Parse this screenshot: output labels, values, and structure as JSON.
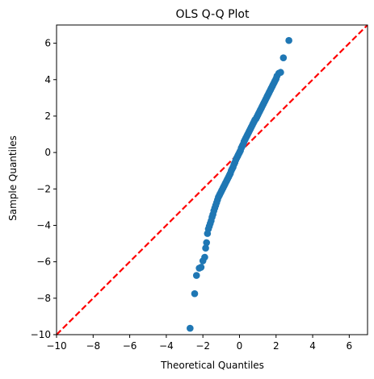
{
  "chart_data": {
    "type": "scatter",
    "title": "OLS Q-Q Plot",
    "xlabel": "Theoretical Quantiles",
    "ylabel": "Sample Quantiles",
    "xlim": [
      -10,
      7
    ],
    "ylim": [
      -10,
      7
    ],
    "xticks": [
      -10,
      -8,
      -6,
      -4,
      -2,
      0,
      2,
      4,
      6
    ],
    "yticks": [
      -10,
      -8,
      -6,
      -4,
      -2,
      0,
      2,
      4,
      6
    ],
    "grid": false,
    "colors": {
      "points": "#1f77b4",
      "reference_line": "#ff0000"
    },
    "reference_line": {
      "style": "dashed",
      "slope": 1,
      "intercept": 0
    },
    "series": [
      {
        "points": [
          [
            -2.7,
            -9.65
          ],
          [
            -2.45,
            -7.75
          ],
          [
            -2.35,
            -6.75
          ],
          [
            -2.2,
            -6.35
          ],
          [
            -2.1,
            -6.3
          ],
          [
            -2.0,
            -5.95
          ],
          [
            -1.9,
            -5.75
          ],
          [
            -1.85,
            -5.25
          ],
          [
            -1.8,
            -4.95
          ],
          [
            -1.75,
            -4.45
          ],
          [
            -1.7,
            -4.2
          ],
          [
            -1.65,
            -4.05
          ],
          [
            -1.6,
            -3.9
          ],
          [
            -1.55,
            -3.75
          ],
          [
            -1.5,
            -3.55
          ],
          [
            -1.45,
            -3.4
          ],
          [
            -1.4,
            -3.2
          ],
          [
            -1.35,
            -3.05
          ],
          [
            -1.3,
            -2.9
          ],
          [
            -1.25,
            -2.75
          ],
          [
            -1.2,
            -2.6
          ],
          [
            -1.15,
            -2.45
          ],
          [
            -1.1,
            -2.35
          ],
          [
            -1.05,
            -2.25
          ],
          [
            -1.0,
            -2.15
          ],
          [
            -0.95,
            -2.05
          ],
          [
            -0.9,
            -1.95
          ],
          [
            -0.85,
            -1.85
          ],
          [
            -0.8,
            -1.75
          ],
          [
            -0.75,
            -1.65
          ],
          [
            -0.7,
            -1.55
          ],
          [
            -0.65,
            -1.45
          ],
          [
            -0.6,
            -1.35
          ],
          [
            -0.55,
            -1.25
          ],
          [
            -0.5,
            -1.15
          ],
          [
            -0.45,
            -1.0
          ],
          [
            -0.4,
            -0.9
          ],
          [
            -0.35,
            -0.8
          ],
          [
            -0.3,
            -0.65
          ],
          [
            -0.25,
            -0.55
          ],
          [
            -0.2,
            -0.4
          ],
          [
            -0.15,
            -0.3
          ],
          [
            -0.1,
            -0.2
          ],
          [
            -0.05,
            -0.1
          ],
          [
            0.0,
            0.0
          ],
          [
            0.05,
            0.1
          ],
          [
            0.1,
            0.25
          ],
          [
            0.15,
            0.35
          ],
          [
            0.2,
            0.45
          ],
          [
            0.25,
            0.6
          ],
          [
            0.3,
            0.7
          ],
          [
            0.35,
            0.8
          ],
          [
            0.4,
            0.9
          ],
          [
            0.45,
            1.0
          ],
          [
            0.5,
            1.1
          ],
          [
            0.55,
            1.2
          ],
          [
            0.6,
            1.3
          ],
          [
            0.65,
            1.4
          ],
          [
            0.7,
            1.5
          ],
          [
            0.75,
            1.6
          ],
          [
            0.8,
            1.7
          ],
          [
            0.85,
            1.8
          ],
          [
            0.9,
            1.85
          ],
          [
            0.95,
            1.95
          ],
          [
            1.0,
            2.05
          ],
          [
            1.05,
            2.15
          ],
          [
            1.1,
            2.25
          ],
          [
            1.15,
            2.35
          ],
          [
            1.2,
            2.45
          ],
          [
            1.25,
            2.55
          ],
          [
            1.3,
            2.65
          ],
          [
            1.35,
            2.75
          ],
          [
            1.4,
            2.85
          ],
          [
            1.45,
            2.95
          ],
          [
            1.5,
            3.05
          ],
          [
            1.55,
            3.15
          ],
          [
            1.6,
            3.25
          ],
          [
            1.65,
            3.35
          ],
          [
            1.7,
            3.45
          ],
          [
            1.75,
            3.55
          ],
          [
            1.8,
            3.65
          ],
          [
            1.85,
            3.75
          ],
          [
            1.9,
            3.85
          ],
          [
            1.95,
            3.95
          ],
          [
            2.0,
            4.05
          ],
          [
            2.05,
            4.2
          ],
          [
            2.15,
            4.35
          ],
          [
            2.25,
            4.4
          ],
          [
            2.4,
            5.2
          ],
          [
            2.7,
            6.15
          ]
        ]
      }
    ]
  }
}
